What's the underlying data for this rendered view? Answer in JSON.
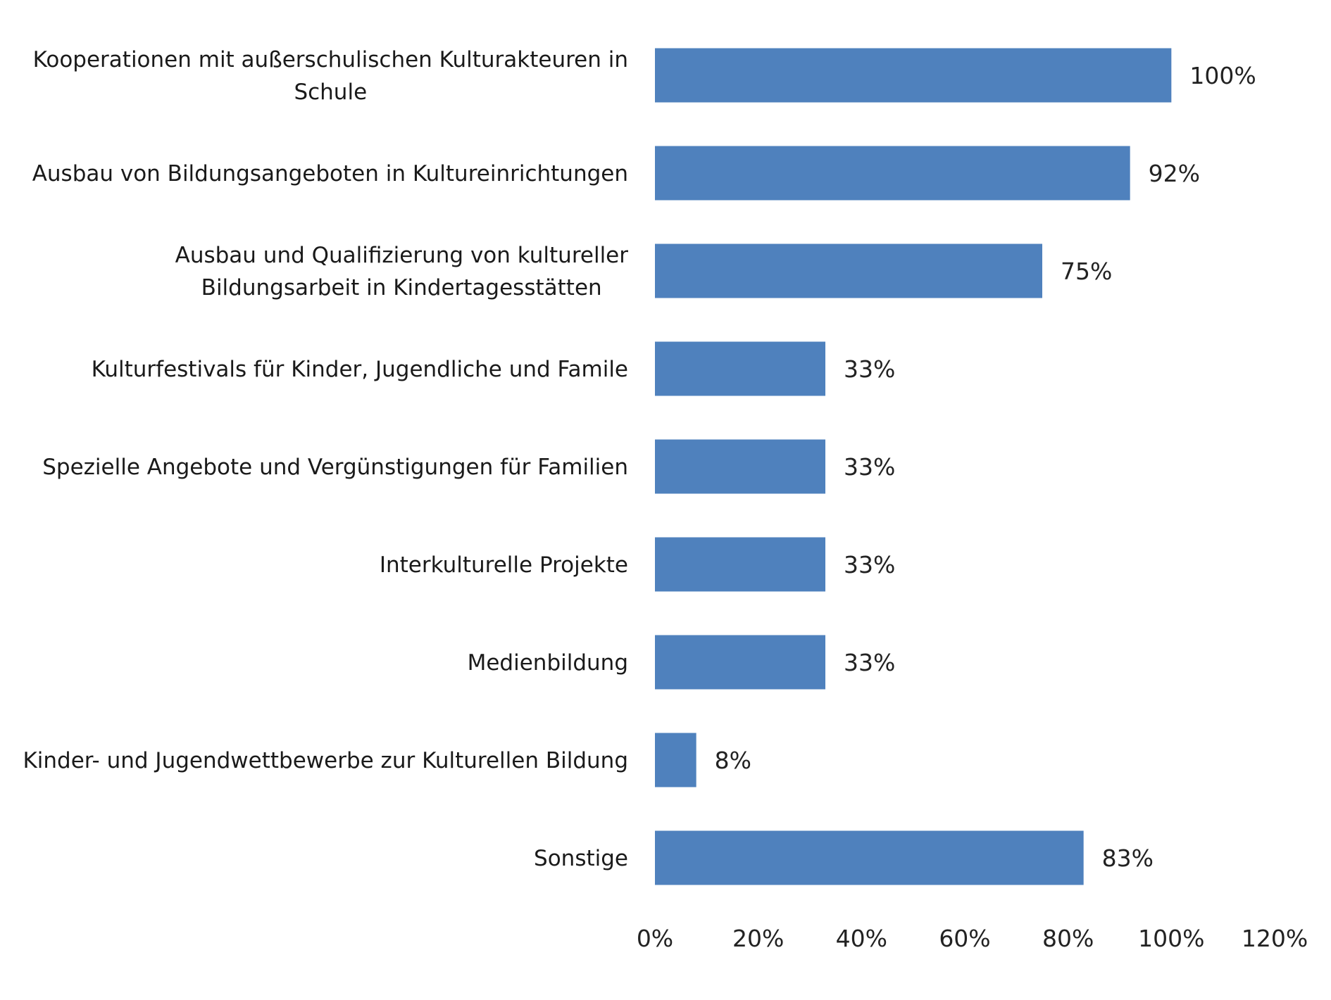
{
  "chart_data": {
    "type": "bar",
    "orientation": "horizontal",
    "title": "",
    "xlabel": "",
    "ylabel": "",
    "xlim": [
      0,
      120
    ],
    "grid": false,
    "legend": "none",
    "bar_color": "#4F81BD",
    "categories": [
      [
        "Kooperationen mit außerschulischen Kulturakteuren in",
        "Schule"
      ],
      [
        "Ausbau von Bildungsangeboten in Kultureinrichtungen"
      ],
      [
        "Ausbau und Qualifizierung von kultureller",
        "Bildungsarbeit in Kindertagesstätten"
      ],
      [
        "Kulturfestivals für Kinder, Jugendliche und Famile"
      ],
      [
        "Spezielle Angebote und Vergünstigungen für Familien"
      ],
      [
        "Interkulturelle Projekte"
      ],
      [
        "Medienbildung"
      ],
      [
        "Kinder- und Jugendwettbewerbe zur Kulturellen Bildung"
      ],
      [
        "Sonstige"
      ]
    ],
    "values": [
      100,
      92,
      75,
      33,
      33,
      33,
      33,
      8,
      83
    ],
    "value_labels": [
      "100%",
      "92%",
      "75%",
      "33%",
      "33%",
      "33%",
      "33%",
      "8%",
      "83%"
    ],
    "ticks": [
      0,
      20,
      40,
      60,
      80,
      100,
      120
    ],
    "tick_labels": [
      "0%",
      "20%",
      "40%",
      "60%",
      "80%",
      "100%",
      "120%"
    ]
  }
}
